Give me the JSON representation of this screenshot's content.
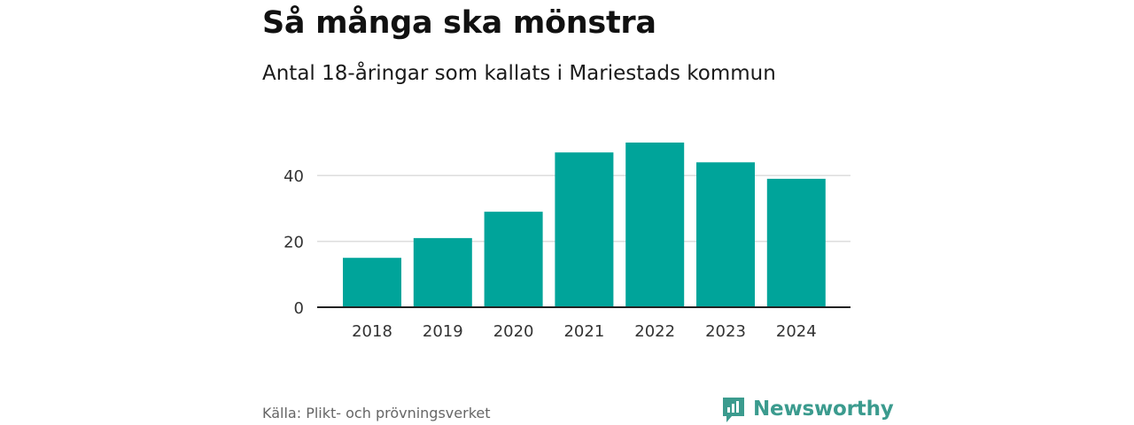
{
  "header": {
    "title": "Så många ska mönstra",
    "subtitle": "Antal 18-åringar som kallats i Mariestads kommun"
  },
  "footer": {
    "source": "Källa: Plikt- och prövningsverket",
    "brand": "Newsworthy"
  },
  "colors": {
    "bar": "#00a49a",
    "brand": "#3b9b8e",
    "grid": "#dddddd",
    "axis": "#222222"
  },
  "chart_data": {
    "type": "bar",
    "title": "Så många ska mönstra",
    "subtitle": "Antal 18-åringar som kallats i Mariestads kommun",
    "categories": [
      "2018",
      "2019",
      "2020",
      "2021",
      "2022",
      "2023",
      "2024"
    ],
    "values": [
      15,
      21,
      29,
      47,
      50,
      44,
      39
    ],
    "xlabel": "",
    "ylabel": "",
    "ylim": [
      0,
      50
    ],
    "yticks": [
      0,
      20,
      40
    ],
    "grid": true,
    "legend": "none"
  }
}
